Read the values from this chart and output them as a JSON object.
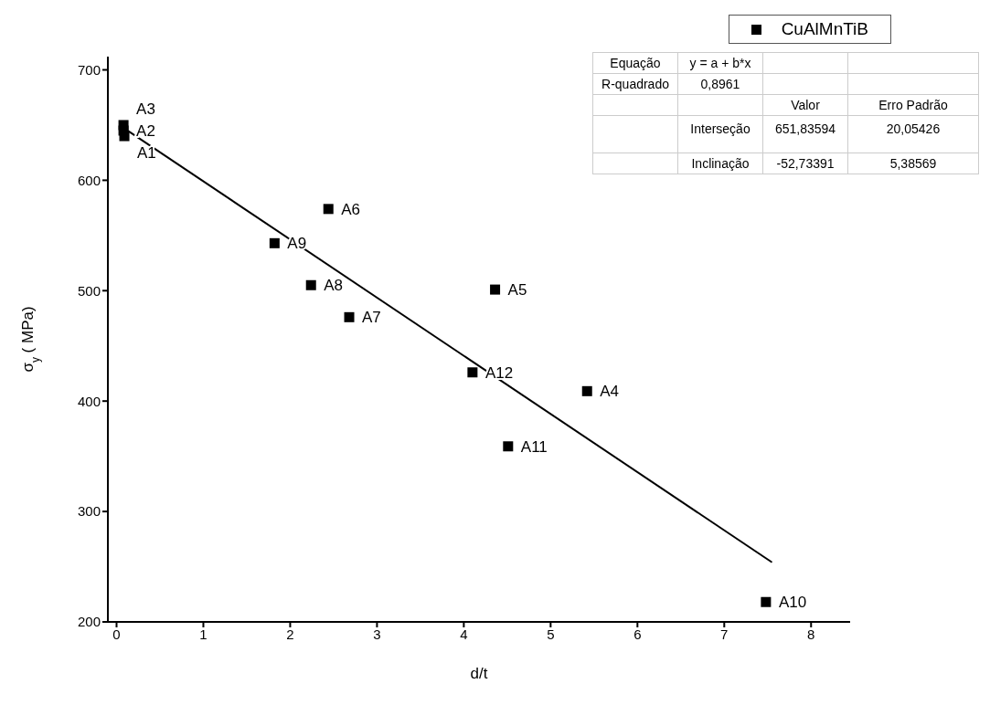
{
  "chart_data": {
    "type": "scatter",
    "xlabel": "d/t",
    "ylabel": "σ$_{y}$ ( MPa)",
    "xlim": [
      -0.1,
      8.45
    ],
    "xticks": [
      0,
      1,
      2,
      3,
      4,
      5,
      6,
      7,
      8
    ],
    "ylim": [
      200,
      712
    ],
    "yticks": [
      200,
      300,
      400,
      500,
      600,
      700
    ],
    "grid": false,
    "legend": "top right",
    "line_style": "solid",
    "series": [
      {
        "name": "CuAlMnTiB",
        "type": "scatter",
        "marker": "square",
        "color": "#000000",
        "x": [
          0.09,
          0.08,
          0.08,
          5.42,
          4.36,
          2.44,
          2.68,
          2.24,
          1.82,
          7.48,
          4.51,
          4.1
        ],
        "values": [
          640,
          645,
          650,
          409,
          501,
          574,
          476,
          505,
          543,
          218,
          359,
          426
        ]
      },
      {
        "type": "line",
        "marker": "none",
        "color": "#000000",
        "x": [
          0.09,
          7.55
        ],
        "values": [
          647,
          254
        ]
      }
    ],
    "annotations": [
      {
        "text": "A1",
        "x": 0.09,
        "y": 640
      },
      {
        "text": "A2",
        "x": 0.08,
        "y": 645
      },
      {
        "text": "A3",
        "x": 0.08,
        "y": 650
      },
      {
        "text": "A4",
        "x": 5.42,
        "y": 409
      },
      {
        "text": "A5",
        "x": 4.36,
        "y": 501
      },
      {
        "text": "A6",
        "x": 2.44,
        "y": 574
      },
      {
        "text": "A7",
        "x": 2.68,
        "y": 476
      },
      {
        "text": "A8",
        "x": 2.24,
        "y": 505
      },
      {
        "text": "A9",
        "x": 1.82,
        "y": 543
      },
      {
        "text": "A10",
        "x": 7.48,
        "y": 218
      },
      {
        "text": "A11",
        "x": 4.51,
        "y": 359
      },
      {
        "text": "A12",
        "x": 4.1,
        "y": 426
      },
      "Equação",
      "y = a + b*x",
      "R-quadrado",
      "0,8961",
      "Valor",
      "Erro Padrão",
      "Interseção",
      "651,83594",
      "20,05426",
      "Inclinação",
      "-52,73391",
      "5,38569"
    ]
  }
}
